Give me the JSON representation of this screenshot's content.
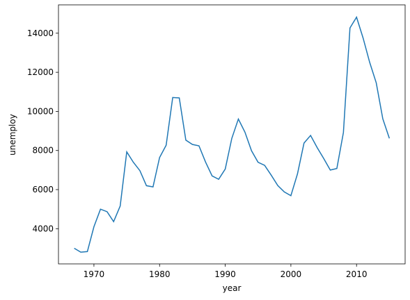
{
  "chart_data": {
    "type": "line",
    "x_label": "year",
    "y_label": "unemploy",
    "x": [
      1967,
      1968,
      1969,
      1970,
      1971,
      1972,
      1973,
      1974,
      1975,
      1976,
      1977,
      1978,
      1979,
      1980,
      1981,
      1982,
      1983,
      1984,
      1985,
      1986,
      1987,
      1988,
      1989,
      1990,
      1991,
      1992,
      1993,
      1994,
      1995,
      1996,
      1997,
      1998,
      1999,
      2000,
      2001,
      2002,
      2003,
      2004,
      2005,
      2006,
      2007,
      2008,
      2009,
      2010,
      2011,
      2012,
      2013,
      2014,
      2015
    ],
    "values": [
      3000,
      2800,
      2830,
      4100,
      5000,
      4870,
      4360,
      5160,
      7930,
      7400,
      6970,
      6200,
      6140,
      7640,
      8270,
      10710,
      10690,
      8530,
      8310,
      8240,
      7410,
      6700,
      6530,
      7050,
      8620,
      9610,
      8940,
      7990,
      7400,
      7240,
      6740,
      6210,
      5880,
      5690,
      6800,
      8380,
      8770,
      8150,
      7590,
      7000,
      7080,
      8920,
      14270,
      14820,
      13750,
      12510,
      11460,
      9620,
      8620
    ],
    "color": "#1f77b4",
    "xlim": [
      1964.6,
      2017.4
    ],
    "xticks": [
      1970,
      1980,
      1990,
      2000,
      2010
    ],
    "ylim": [
      2200,
      15450
    ],
    "yticks": [
      4000,
      6000,
      8000,
      10000,
      12000,
      14000
    ],
    "grid": false
  }
}
